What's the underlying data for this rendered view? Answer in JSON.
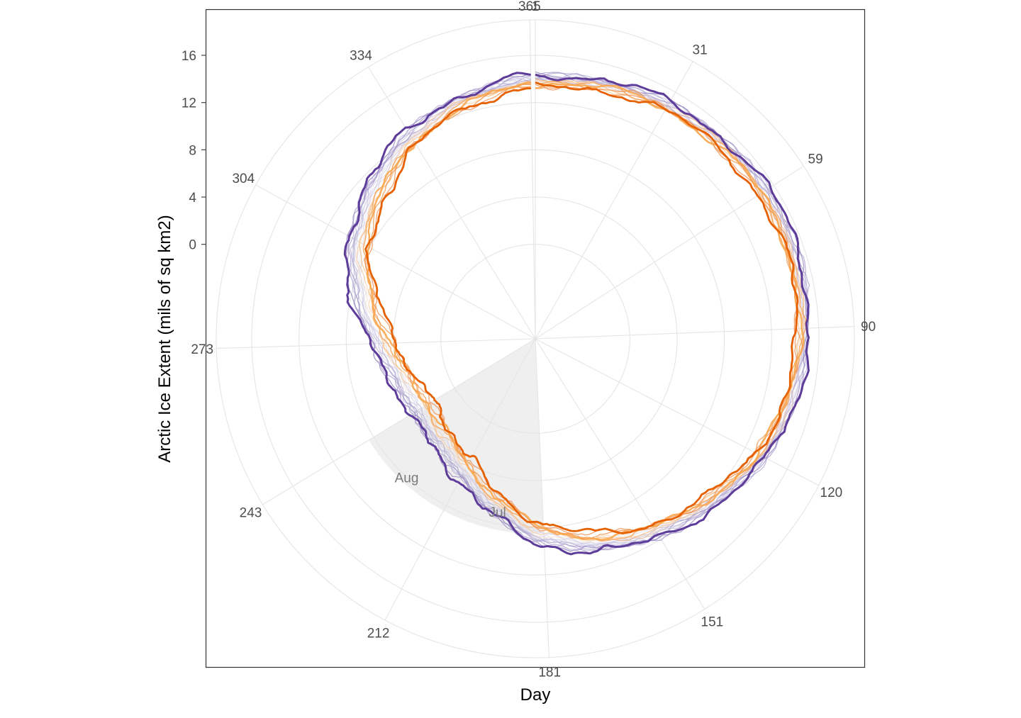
{
  "chart_data": {
    "type": "line",
    "coord": "polar",
    "xlabel": "Day",
    "ylabel": "Arctic Ice Extent (mils of sq km2)",
    "x_ticks": [
      "1",
      "31",
      "59",
      "90",
      "120",
      "151",
      "181",
      "212",
      "243",
      "273",
      "304",
      "334",
      "365"
    ],
    "x_tick_values": [
      1,
      31,
      59,
      90,
      120,
      151,
      181,
      212,
      243,
      273,
      304,
      334,
      365
    ],
    "y_ticks": [
      "0",
      "4",
      "8",
      "12",
      "16"
    ],
    "y_tick_values": [
      0,
      4,
      8,
      12,
      16
    ],
    "xlim": [
      1,
      366
    ],
    "ylim": [
      -8,
      19
    ],
    "grid": true,
    "legend": "none",
    "highlight": {
      "days": [
        181,
        243
      ],
      "ylim": [
        -8,
        8.5
      ],
      "labels": [
        {
          "text": "Jul",
          "day": 196,
          "y": 7
        },
        {
          "text": "Aug",
          "day": 227,
          "y": 8
        }
      ]
    },
    "profile": {
      "day": [
        1,
        31,
        59,
        75,
        90,
        105,
        120,
        135,
        151,
        166,
        181,
        196,
        212,
        227,
        243,
        258,
        273,
        288,
        304,
        319,
        334,
        350,
        365
      ],
      "early_extent": [
        14.3,
        15.0,
        15.5,
        15.4,
        15.2,
        14.7,
        14.0,
        12.8,
        11.8,
        10.8,
        9.5,
        7.5,
        5.6,
        4.6,
        4.3,
        4.7,
        6.0,
        8.0,
        10.0,
        11.5,
        12.7,
        13.6,
        14.3
      ],
      "late_extent": [
        13.3,
        14.2,
        14.5,
        14.4,
        14.2,
        13.7,
        13.0,
        11.7,
        10.5,
        9.2,
        7.7,
        5.6,
        3.5,
        2.5,
        2.1,
        2.6,
        3.8,
        5.5,
        7.9,
        9.5,
        11.2,
        12.5,
        13.3
      ]
    },
    "series": [
      {
        "name": "",
        "blend": 0.0,
        "color": "#5e3c99",
        "width": 3.0,
        "opacity": 1.0,
        "seed": 1
      },
      {
        "name": "",
        "blend": 0.05,
        "color": "#7b68b0",
        "width": 1.2,
        "opacity": 0.65,
        "seed": 2
      },
      {
        "name": "",
        "blend": 0.1,
        "color": "#8a78ba",
        "width": 1.2,
        "opacity": 0.6,
        "seed": 3
      },
      {
        "name": "",
        "blend": 0.14,
        "color": "#9285c0",
        "width": 1.2,
        "opacity": 0.6,
        "seed": 4
      },
      {
        "name": "",
        "blend": 0.18,
        "color": "#9c90c6",
        "width": 1.2,
        "opacity": 0.55,
        "seed": 5
      },
      {
        "name": "",
        "blend": 0.22,
        "color": "#a59ccb",
        "width": 1.2,
        "opacity": 0.55,
        "seed": 6
      },
      {
        "name": "",
        "blend": 0.26,
        "color": "#aea6d0",
        "width": 1.2,
        "opacity": 0.55,
        "seed": 7
      },
      {
        "name": "",
        "blend": 0.3,
        "color": "#b5aed4",
        "width": 1.2,
        "opacity": 0.5,
        "seed": 8
      },
      {
        "name": "",
        "blend": 0.34,
        "color": "#bdb7d9",
        "width": 1.2,
        "opacity": 0.5,
        "seed": 9
      },
      {
        "name": "",
        "blend": 0.38,
        "color": "#c4bfdd",
        "width": 1.2,
        "opacity": 0.5,
        "seed": 10
      },
      {
        "name": "",
        "blend": 0.42,
        "color": "#cdc8e2",
        "width": 1.2,
        "opacity": 0.5,
        "seed": 11
      },
      {
        "name": "",
        "blend": 0.46,
        "color": "#d6d2e7",
        "width": 1.2,
        "opacity": 0.5,
        "seed": 12
      },
      {
        "name": "",
        "blend": 0.5,
        "color": "#dedbea",
        "width": 1.2,
        "opacity": 0.5,
        "seed": 13
      },
      {
        "name": "",
        "blend": 0.55,
        "color": "#f3d7bd",
        "width": 1.2,
        "opacity": 0.55,
        "seed": 14
      },
      {
        "name": "",
        "blend": 0.6,
        "color": "#f6c796",
        "width": 1.3,
        "opacity": 0.6,
        "seed": 15
      },
      {
        "name": "",
        "blend": 0.65,
        "color": "#f7b776",
        "width": 1.3,
        "opacity": 0.7,
        "seed": 16
      },
      {
        "name": "",
        "blend": 0.72,
        "color": "#f5a55c",
        "width": 1.6,
        "opacity": 0.85,
        "seed": 17
      },
      {
        "name": "",
        "blend": 0.78,
        "color": "#f9a74f",
        "width": 2.5,
        "opacity": 0.9,
        "seed": 18
      },
      {
        "name": "",
        "blend": 0.84,
        "color": "#ef8a3c",
        "width": 1.3,
        "opacity": 0.75,
        "seed": 19
      },
      {
        "name": "",
        "blend": 0.92,
        "color": "#ec7f3a",
        "width": 1.3,
        "opacity": 0.7,
        "seed": 20
      },
      {
        "name": "",
        "blend": 1.0,
        "color": "#e66101",
        "width": 2.8,
        "opacity": 1.0,
        "seed": 21
      }
    ],
    "colors": {
      "panel_border": "#333333",
      "grid": "#e5e5e5",
      "highlight": "#efefef",
      "tick_text": "#4d4d4d"
    }
  }
}
